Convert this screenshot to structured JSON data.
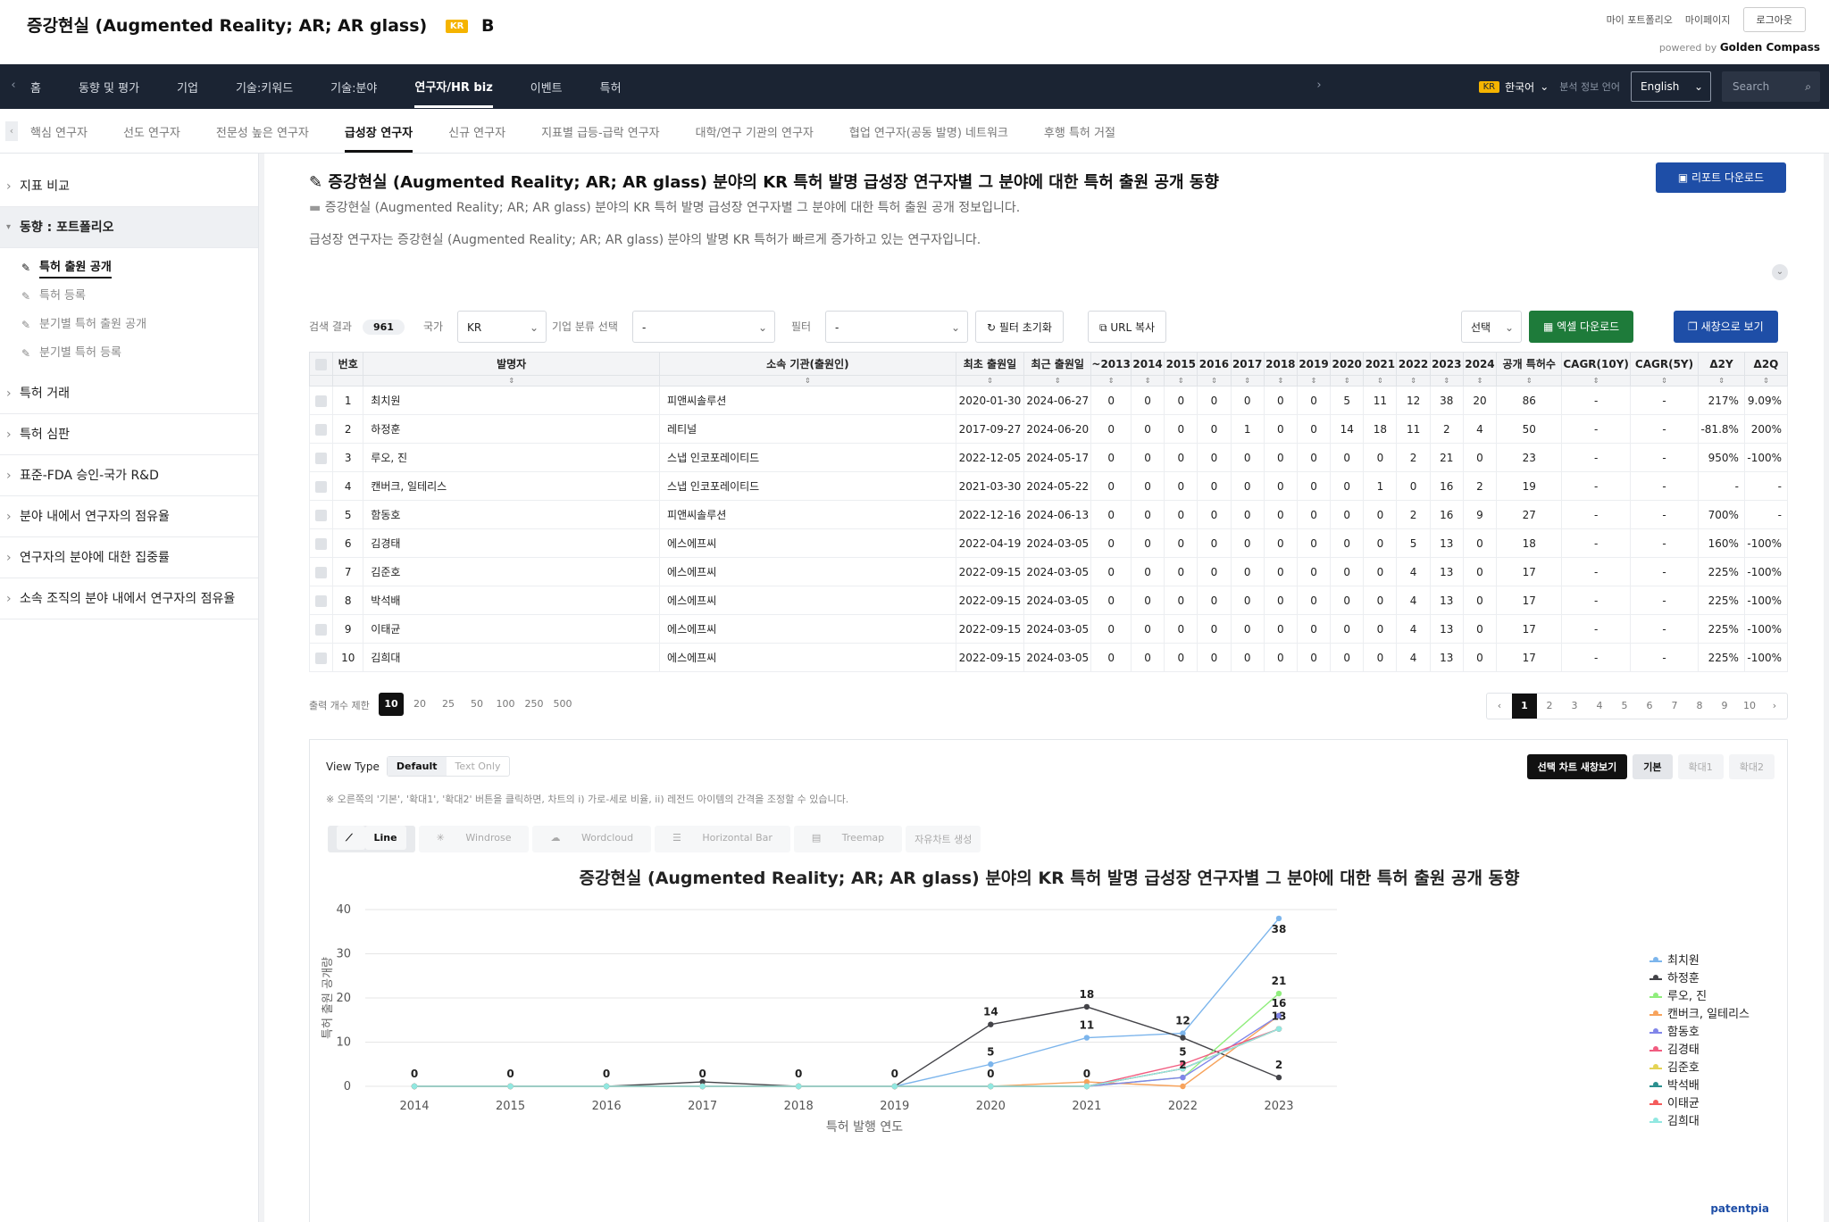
{
  "header": {
    "title": "증강현실 (Augmented Reality; AR; AR glass)",
    "badge": "KR",
    "grade": "B",
    "links": [
      "마이 포트폴리오",
      "마이페이지",
      "로그아웃"
    ],
    "powered_prefix": "powered by",
    "powered_brand": "Golden Compass"
  },
  "nav": {
    "items": [
      "홈",
      "동향 및 평가",
      "기업",
      "기술:키워드",
      "기술:분야",
      "연구자/HR biz",
      "이벤트",
      "특허"
    ],
    "active": "연구자/HR biz",
    "lang_badge": "KR",
    "lang_current": "한국어",
    "lang_label": "분석 정보 언어",
    "lang_select": "English",
    "search_placeholder": "Search"
  },
  "subnav": {
    "items": [
      "핵심 연구자",
      "선도 연구자",
      "전문성 높은 연구자",
      "급성장 연구자",
      "신규 연구자",
      "지표별 급등-급락 연구자",
      "대학/연구 기관의 연구자",
      "협업 연구자(공동 발명) 네트워크",
      "후행 특허 거절"
    ],
    "active": "급성장 연구자"
  },
  "sidebar": {
    "sections": [
      "지표 비교",
      "동향 : 포트폴리오",
      "특허 거래",
      "특허 심판",
      "표준-FDA 승인-국가 R&D",
      "분야 내에서 연구자의 점유율",
      "연구자의 분야에 대한 집중률",
      "소속 조직의 분야 내에서 연구자의 점유율"
    ],
    "sub_items": [
      "특허 출원 공개",
      "특허 등록",
      "분기별 특허 출원 공개",
      "분기별 특허 등록"
    ]
  },
  "main": {
    "title": "증강현실 (Augmented Reality; AR; AR glass) 분야의 KR 특허 발명 급성장 연구자별 그 분야에 대한 특허 출원 공개 동향",
    "report_button": "리포트 다운로드",
    "desc1": "증강현실 (Augmented Reality; AR; AR glass) 분야의 KR 특허 발명 급성장 연구자별 그 분야에 대한 특허 출원 공개 정보입니다.",
    "desc2": "급성장 연구자는 증강현실 (Augmented Reality; AR; AR glass) 분야의 발명 KR 특허가 빠르게 증가하고 있는 연구자입니다."
  },
  "toolbar": {
    "result_label": "검색 결과",
    "result_count": "961",
    "country_label": "국가",
    "country_value": "KR",
    "class_label": "기업 분류 선택",
    "class_value": "-",
    "filter_label": "필터",
    "filter_value": "-",
    "reset_button": "필터 초기화",
    "url_button": "URL 복사",
    "select_value": "선택",
    "excel_button": "엑셀 다운로드",
    "newwin_button": "새창으로 보기"
  },
  "table": {
    "headers": [
      "번호",
      "발명자",
      "소속 기관(출원인)",
      "최초 출원일",
      "최근 출원일",
      "~2013",
      "2014",
      "2015",
      "2016",
      "2017",
      "2018",
      "2019",
      "2020",
      "2021",
      "2022",
      "2023",
      "2024",
      "공개 특허수",
      "CAGR(10Y)",
      "CAGR(5Y)",
      "Δ2Y",
      "Δ2Q"
    ],
    "rows": [
      [
        "1",
        "최치원",
        "피앤씨솔루션",
        "2020-01-30",
        "2024-06-27",
        "0",
        "0",
        "0",
        "0",
        "0",
        "0",
        "0",
        "5",
        "11",
        "12",
        "38",
        "20",
        "86",
        "-",
        "-",
        "217%",
        "9.09%"
      ],
      [
        "2",
        "하정훈",
        "레티널",
        "2017-09-27",
        "2024-06-20",
        "0",
        "0",
        "0",
        "0",
        "1",
        "0",
        "0",
        "14",
        "18",
        "11",
        "2",
        "4",
        "50",
        "-",
        "-",
        "-81.8%",
        "200%"
      ],
      [
        "3",
        "루오, 진",
        "스냅 인코포레이티드",
        "2022-12-05",
        "2024-05-17",
        "0",
        "0",
        "0",
        "0",
        "0",
        "0",
        "0",
        "0",
        "0",
        "2",
        "21",
        "0",
        "23",
        "-",
        "-",
        "950%",
        "-100%"
      ],
      [
        "4",
        "캔버크, 일테리스",
        "스냅 인코포레이티드",
        "2021-03-30",
        "2024-05-22",
        "0",
        "0",
        "0",
        "0",
        "0",
        "0",
        "0",
        "0",
        "1",
        "0",
        "16",
        "2",
        "19",
        "-",
        "-",
        "-",
        "-"
      ],
      [
        "5",
        "함동호",
        "피앤씨솔루션",
        "2022-12-16",
        "2024-06-13",
        "0",
        "0",
        "0",
        "0",
        "0",
        "0",
        "0",
        "0",
        "0",
        "2",
        "16",
        "9",
        "27",
        "-",
        "-",
        "700%",
        "-"
      ],
      [
        "6",
        "김경태",
        "에스에프씨",
        "2022-04-19",
        "2024-03-05",
        "0",
        "0",
        "0",
        "0",
        "0",
        "0",
        "0",
        "0",
        "0",
        "5",
        "13",
        "0",
        "18",
        "-",
        "-",
        "160%",
        "-100%"
      ],
      [
        "7",
        "김준호",
        "에스에프씨",
        "2022-09-15",
        "2024-03-05",
        "0",
        "0",
        "0",
        "0",
        "0",
        "0",
        "0",
        "0",
        "0",
        "4",
        "13",
        "0",
        "17",
        "-",
        "-",
        "225%",
        "-100%"
      ],
      [
        "8",
        "박석배",
        "에스에프씨",
        "2022-09-15",
        "2024-03-05",
        "0",
        "0",
        "0",
        "0",
        "0",
        "0",
        "0",
        "0",
        "0",
        "4",
        "13",
        "0",
        "17",
        "-",
        "-",
        "225%",
        "-100%"
      ],
      [
        "9",
        "이태균",
        "에스에프씨",
        "2022-09-15",
        "2024-03-05",
        "0",
        "0",
        "0",
        "0",
        "0",
        "0",
        "0",
        "0",
        "0",
        "4",
        "13",
        "0",
        "17",
        "-",
        "-",
        "225%",
        "-100%"
      ],
      [
        "10",
        "김희대",
        "에스에프씨",
        "2022-09-15",
        "2024-03-05",
        "0",
        "0",
        "0",
        "0",
        "0",
        "0",
        "0",
        "0",
        "0",
        "4",
        "13",
        "0",
        "17",
        "-",
        "-",
        "225%",
        "-100%"
      ]
    ]
  },
  "pagination": {
    "limit_label": "출력 개수 제한",
    "sizes": [
      "10",
      "20",
      "25",
      "50",
      "100",
      "250",
      "500"
    ],
    "pages": [
      "‹",
      "1",
      "2",
      "3",
      "4",
      "5",
      "6",
      "7",
      "8",
      "9",
      "10",
      "›"
    ]
  },
  "chart_panel": {
    "view_type_label": "View Type",
    "view_default": "Default",
    "view_text": "Text Only",
    "btn_new": "선택 차트 새창보기",
    "btn_basic": "기본",
    "btn_zoom1": "확대1",
    "btn_zoom2": "확대2",
    "note": "※ 오른쪽의 '기본', '확대1', '확대2' 버튼을 클릭하면, 차트의 i) 가로-세로 비율, ii) 레전드 아이템의 간격을 조정할 수 있습니다.",
    "types": [
      "Line",
      "Windrose",
      "Wordcloud",
      "Horizontal Bar",
      "Treemap",
      "자유차트 생성"
    ],
    "credit": "patentpia"
  },
  "chart_data": {
    "type": "line",
    "title": "증강현실 (Augmented Reality; AR; AR glass) 분야의 KR 특허 발명 급성장 연구자별 그 분야에 대한 특허 출원 공개 동향",
    "xlabel": "특허 발행 연도",
    "ylabel": "특허 출원 공개량",
    "x": [
      "2014",
      "2015",
      "2016",
      "2017",
      "2018",
      "2019",
      "2020",
      "2021",
      "2022",
      "2023"
    ],
    "ylim": [
      0,
      40
    ],
    "yticks": [
      0,
      10,
      20,
      30,
      40
    ],
    "legend_position": "right",
    "series": [
      {
        "name": "최치원",
        "color": "#7cb5ec",
        "values": [
          0,
          0,
          0,
          0,
          0,
          0,
          5,
          11,
          12,
          38
        ]
      },
      {
        "name": "하정훈",
        "color": "#434348",
        "values": [
          0,
          0,
          0,
          1,
          0,
          0,
          14,
          18,
          11,
          2
        ]
      },
      {
        "name": "루오, 진",
        "color": "#90ed7d",
        "values": [
          0,
          0,
          0,
          0,
          0,
          0,
          0,
          0,
          2,
          21
        ]
      },
      {
        "name": "캔버크, 일테리스",
        "color": "#f7a35c",
        "values": [
          0,
          0,
          0,
          0,
          0,
          0,
          0,
          1,
          0,
          16
        ]
      },
      {
        "name": "함동호",
        "color": "#8085e9",
        "values": [
          0,
          0,
          0,
          0,
          0,
          0,
          0,
          0,
          2,
          16
        ]
      },
      {
        "name": "김경태",
        "color": "#f15c80",
        "values": [
          0,
          0,
          0,
          0,
          0,
          0,
          0,
          0,
          5,
          13
        ]
      },
      {
        "name": "김준호",
        "color": "#e4d354",
        "values": [
          0,
          0,
          0,
          0,
          0,
          0,
          0,
          0,
          4,
          13
        ]
      },
      {
        "name": "박석배",
        "color": "#2b908f",
        "values": [
          0,
          0,
          0,
          0,
          0,
          0,
          0,
          0,
          4,
          13
        ]
      },
      {
        "name": "이태균",
        "color": "#f45b5b",
        "values": [
          0,
          0,
          0,
          0,
          0,
          0,
          0,
          0,
          4,
          13
        ]
      },
      {
        "name": "김희대",
        "color": "#91e8e1",
        "values": [
          0,
          0,
          0,
          0,
          0,
          0,
          0,
          0,
          4,
          13
        ]
      }
    ],
    "labels": [
      {
        "x": "2014",
        "text": "0"
      },
      {
        "x": "2015",
        "text": "0"
      },
      {
        "x": "2016",
        "text": "0"
      },
      {
        "x": "2017",
        "text": "0"
      },
      {
        "x": "2018",
        "text": "0"
      },
      {
        "x": "2019",
        "text": "0"
      },
      {
        "x": "2020",
        "text": "14"
      },
      {
        "x": "2020",
        "text": "5"
      },
      {
        "x": "2020",
        "text": "0"
      },
      {
        "x": "2021",
        "text": "18"
      },
      {
        "x": "2021",
        "text": "11"
      },
      {
        "x": "2021",
        "text": "0"
      },
      {
        "x": "2022",
        "text": "12"
      },
      {
        "x": "2022",
        "text": "5"
      },
      {
        "x": "2022",
        "text": "2"
      },
      {
        "x": "2023",
        "text": "38"
      },
      {
        "x": "2023",
        "text": "21"
      },
      {
        "x": "2023",
        "text": "16"
      },
      {
        "x": "2023",
        "text": "13"
      },
      {
        "x": "2023",
        "text": "2"
      }
    ]
  }
}
